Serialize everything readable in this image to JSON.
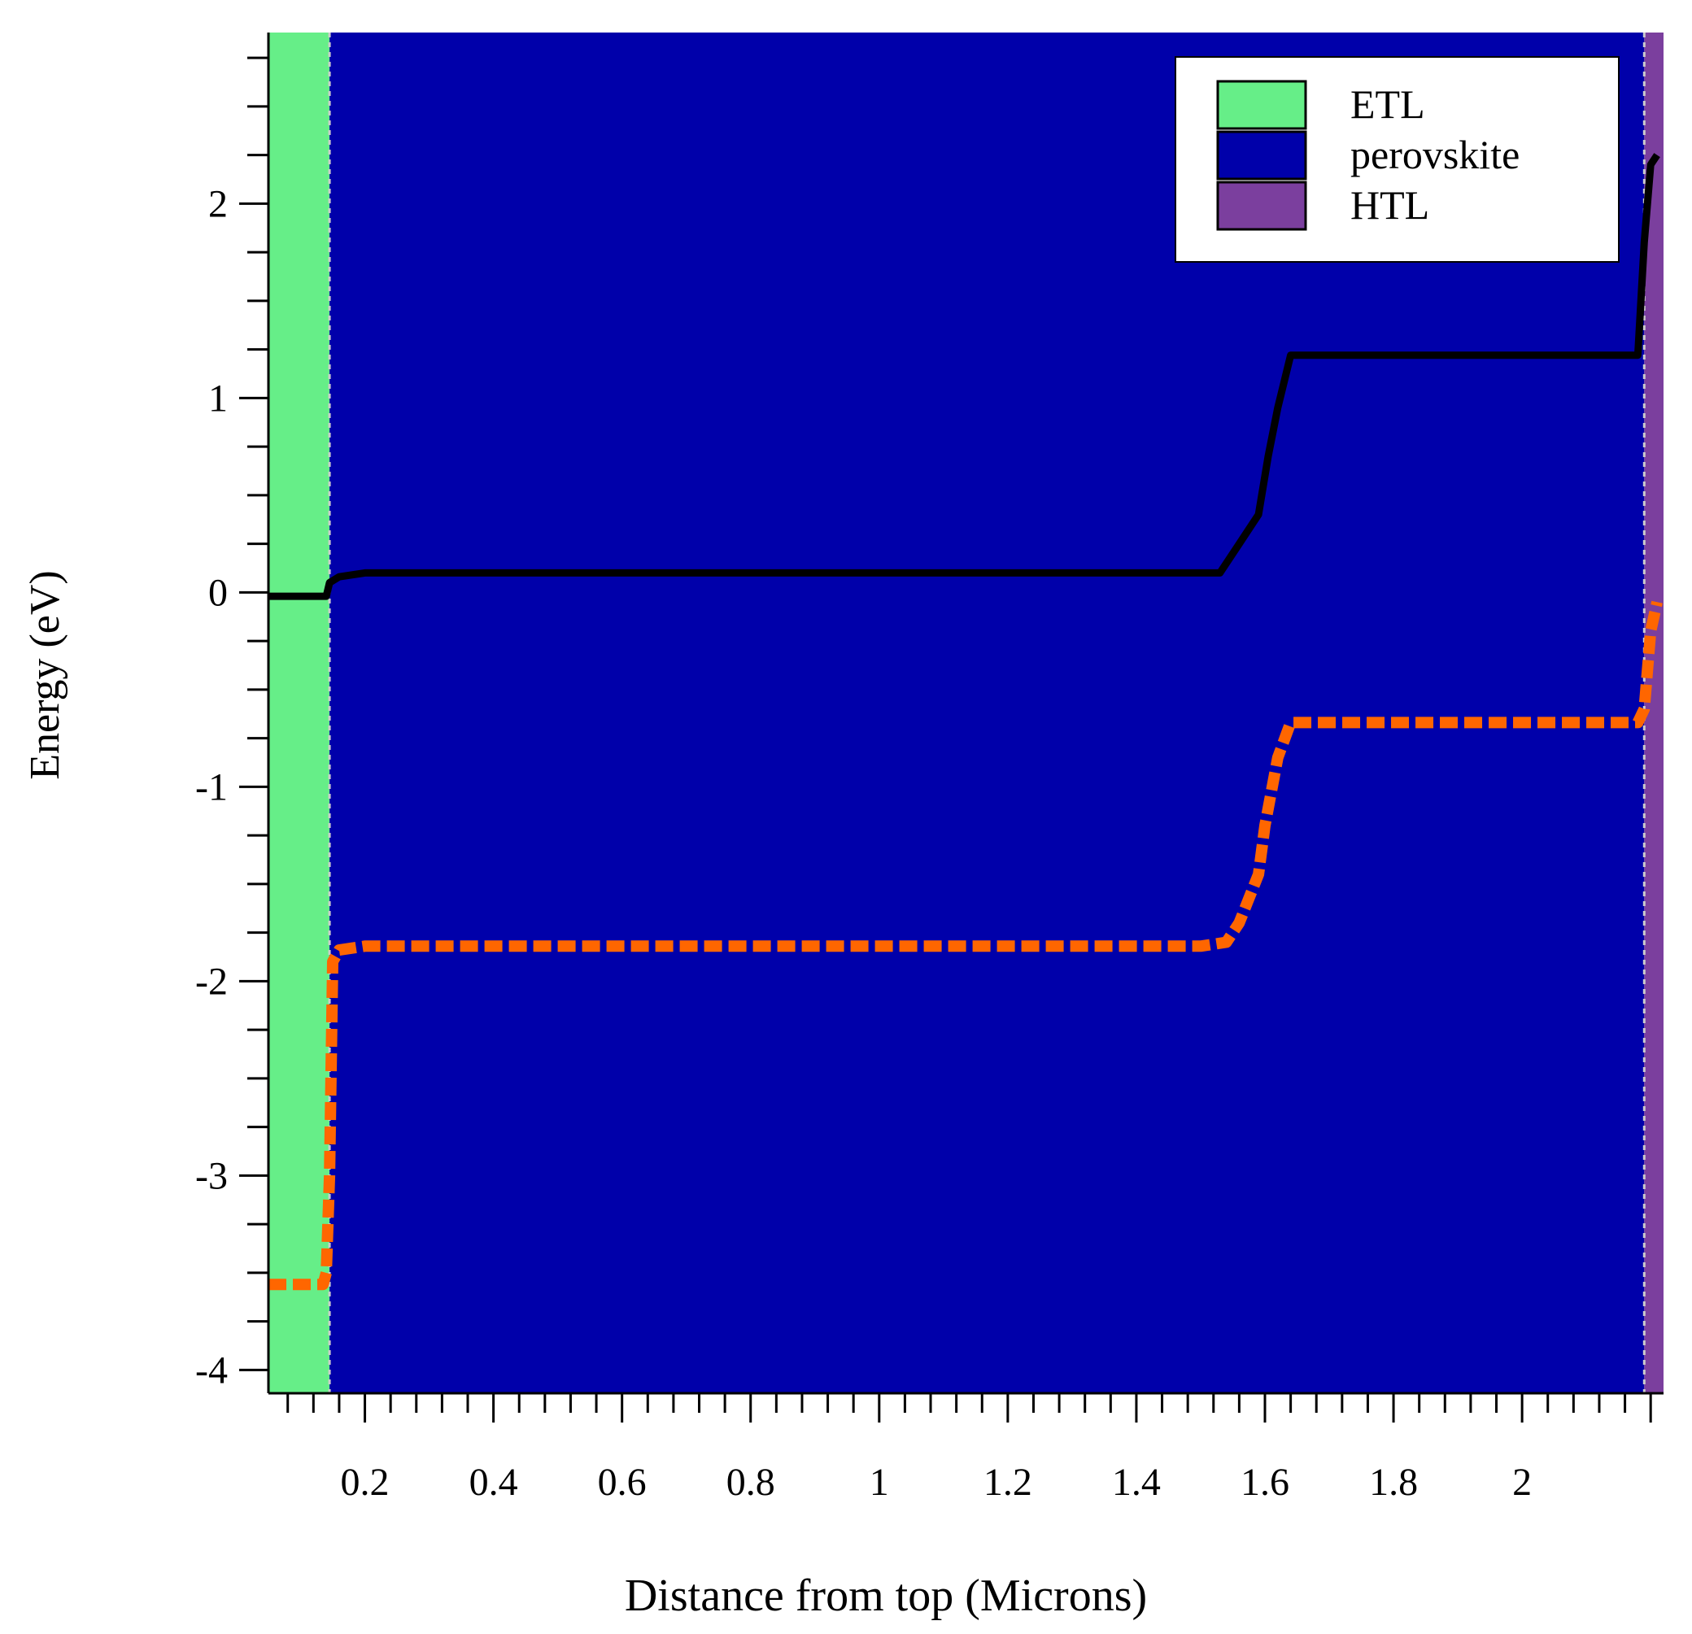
{
  "chart_data": {
    "type": "area",
    "title": "",
    "xlabel": "Distance from top (Microns)",
    "ylabel": "Energy (eV)",
    "xlim": [
      0.05,
      2.22
    ],
    "ylim": [
      -4.12,
      2.88
    ],
    "x_ticks": [
      {
        "value": 0.2,
        "label": "0.2"
      },
      {
        "value": 0.4,
        "label": "0.4"
      },
      {
        "value": 0.6,
        "label": "0.6"
      },
      {
        "value": 0.8,
        "label": "0.8"
      },
      {
        "value": 1.0,
        "label": "1"
      },
      {
        "value": 1.2,
        "label": "1.2"
      },
      {
        "value": 1.4,
        "label": "1.4"
      },
      {
        "value": 1.6,
        "label": "1.6"
      },
      {
        "value": 1.8,
        "label": "1.8"
      },
      {
        "value": 2.0,
        "label": "2"
      }
    ],
    "y_ticks": [
      {
        "value": 2,
        "label": "2"
      },
      {
        "value": 1,
        "label": "1"
      },
      {
        "value": 0,
        "label": "0"
      },
      {
        "value": -1,
        "label": "-1"
      },
      {
        "value": -2,
        "label": "-2"
      },
      {
        "value": -3,
        "label": "-3"
      },
      {
        "value": -4,
        "label": "-4"
      }
    ],
    "grid": false,
    "legend_position": "top-right",
    "layers": [
      {
        "name": "ETL",
        "x_start": 0.05,
        "x_end": 0.145,
        "color": "#66EE88"
      },
      {
        "name": "perovskite",
        "x_start": 0.145,
        "x_end": 2.19,
        "color": "#0000AA"
      },
      {
        "name": "HTL",
        "x_start": 2.19,
        "x_end": 2.22,
        "color": "#7B3F9E"
      }
    ],
    "series": [
      {
        "style": "solid",
        "color": "#000000",
        "x": [
          0.05,
          0.14,
          0.145,
          0.16,
          0.2,
          0.4,
          0.8,
          1.2,
          1.5,
          1.53,
          1.56,
          1.59,
          1.605,
          1.62,
          1.64,
          1.8,
          2.0,
          2.18,
          2.19,
          2.2,
          2.21
        ],
        "y": [
          -0.02,
          -0.02,
          0.05,
          0.08,
          0.1,
          0.1,
          0.1,
          0.1,
          0.1,
          0.1,
          0.25,
          0.4,
          0.7,
          0.95,
          1.22,
          1.22,
          1.22,
          1.22,
          1.8,
          2.2,
          2.25
        ]
      },
      {
        "style": "dashed",
        "color": "#FF6600",
        "x": [
          0.05,
          0.135,
          0.14,
          0.145,
          0.15,
          0.16,
          0.2,
          0.4,
          0.8,
          1.2,
          1.5,
          1.54,
          1.56,
          1.59,
          1.6,
          1.62,
          1.64,
          1.8,
          2.0,
          2.18,
          2.19,
          2.2,
          2.21
        ],
        "y": [
          -3.56,
          -3.56,
          -3.5,
          -3.0,
          -1.9,
          -1.84,
          -1.82,
          -1.82,
          -1.82,
          -1.82,
          -1.82,
          -1.8,
          -1.7,
          -1.45,
          -1.2,
          -0.85,
          -0.67,
          -0.67,
          -0.67,
          -0.67,
          -0.6,
          -0.2,
          -0.05
        ]
      }
    ]
  }
}
